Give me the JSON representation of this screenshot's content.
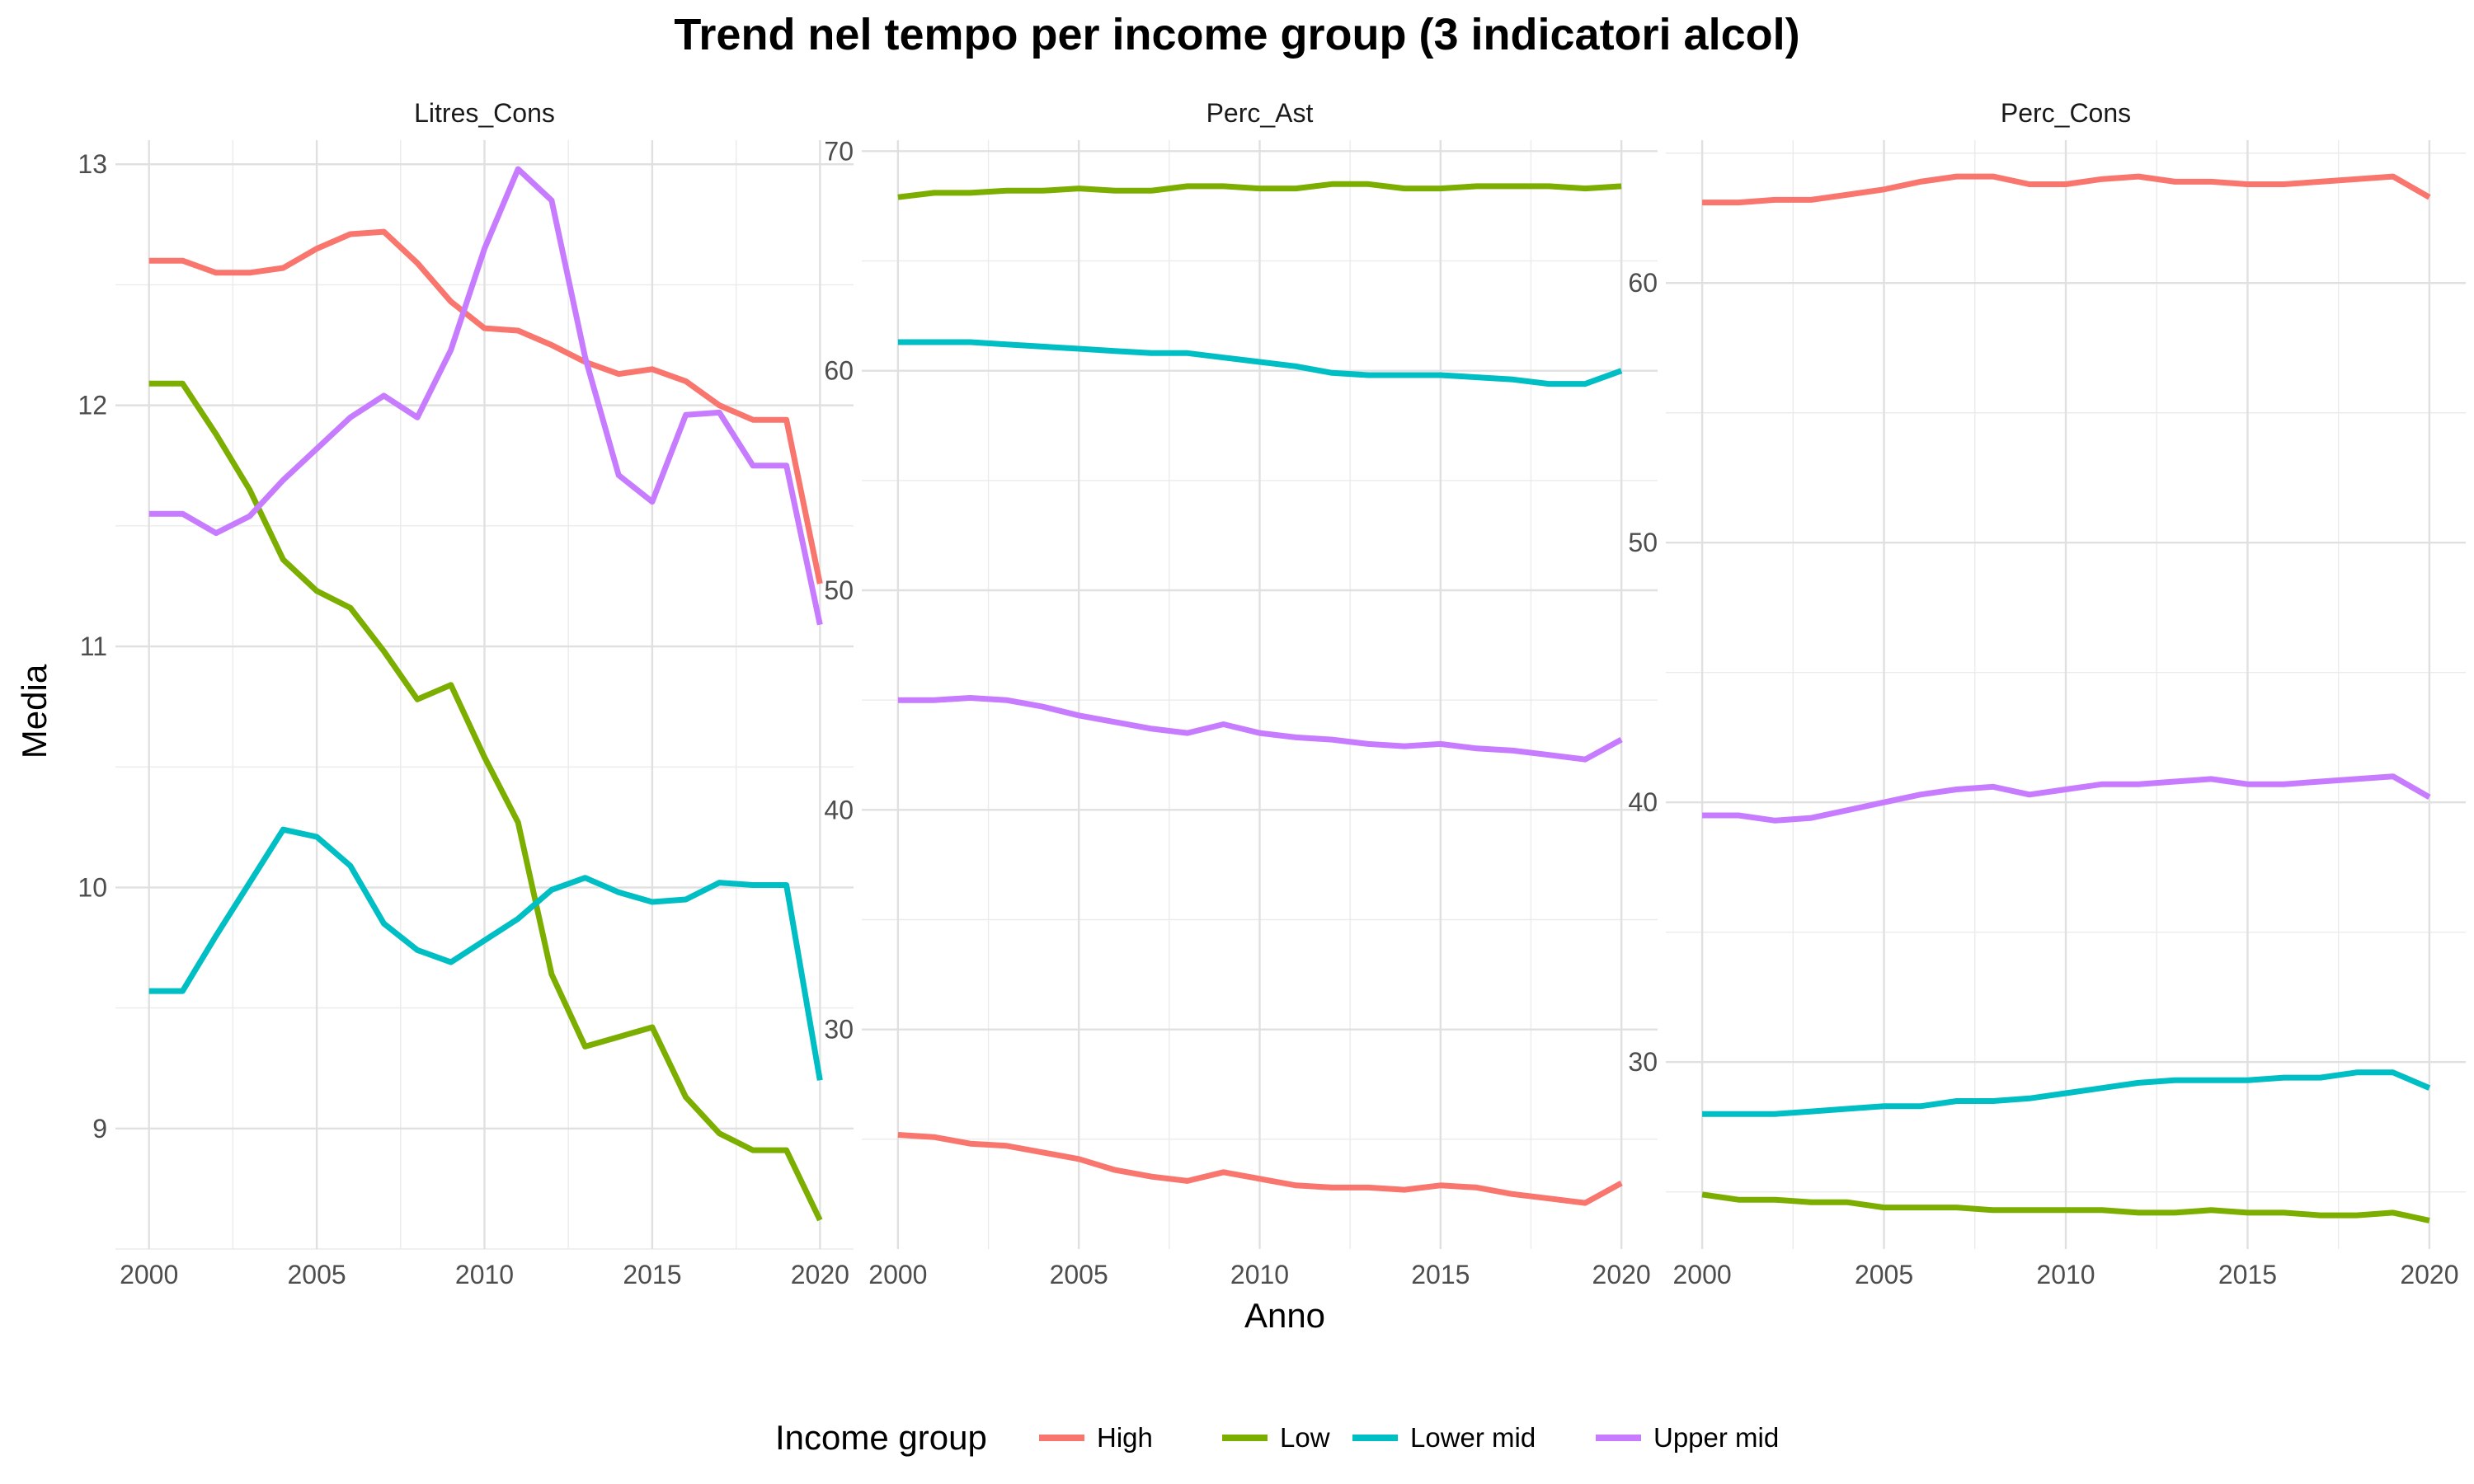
{
  "chart_data": {
    "type": "line",
    "title": "Trend nel tempo per income group (3 indicatori alcol)",
    "xlabel": "Anno",
    "ylabel": "Media",
    "x_ticks": [
      2000,
      2005,
      2010,
      2015,
      2020
    ],
    "x_range": [
      1999,
      2021
    ],
    "x": [
      2000,
      2001,
      2002,
      2003,
      2004,
      2005,
      2006,
      2007,
      2008,
      2009,
      2010,
      2011,
      2012,
      2013,
      2014,
      2015,
      2016,
      2017,
      2018,
      2019,
      2020
    ],
    "legend": {
      "title": "Income group",
      "position": "bottom"
    },
    "grid": true,
    "colors": {
      "High": "#F8766D",
      "Low": "#7CAE00",
      "Lower mid": "#00BFC4",
      "Upper mid": "#C77CFF"
    },
    "panels": [
      {
        "strip": "Litres_Cons",
        "ylim": [
          8.5,
          13.1
        ],
        "y_ticks": [
          9,
          10,
          11,
          12,
          13
        ],
        "series": [
          {
            "name": "High",
            "values": [
              12.6,
              12.6,
              12.55,
              12.55,
              12.57,
              12.65,
              12.71,
              12.72,
              12.59,
              12.43,
              12.32,
              12.31,
              12.25,
              12.18,
              12.13,
              12.15,
              12.1,
              12.0,
              11.94,
              11.94,
              11.26
            ]
          },
          {
            "name": "Low",
            "values": [
              12.09,
              12.09,
              11.88,
              11.65,
              11.36,
              11.23,
              11.16,
              10.98,
              10.78,
              10.84,
              10.54,
              10.27,
              9.64,
              9.34,
              9.38,
              9.42,
              9.13,
              8.98,
              8.91,
              8.91,
              8.62
            ]
          },
          {
            "name": "Lower mid",
            "values": [
              9.57,
              9.57,
              9.8,
              10.02,
              10.24,
              10.21,
              10.09,
              9.85,
              9.74,
              9.69,
              9.78,
              9.87,
              9.99,
              10.04,
              9.98,
              9.94,
              9.95,
              10.02,
              10.01,
              10.01,
              9.2
            ]
          },
          {
            "name": "Upper mid",
            "values": [
              11.55,
              11.55,
              11.47,
              11.54,
              11.69,
              11.82,
              11.95,
              12.04,
              11.95,
              12.23,
              12.65,
              12.98,
              12.85,
              12.2,
              11.71,
              11.6,
              11.96,
              11.97,
              11.75,
              11.75,
              11.09
            ]
          }
        ]
      },
      {
        "strip": "Perc_Ast",
        "ylim": [
          20.0,
          70.5
        ],
        "y_ticks": [
          30,
          40,
          50,
          60,
          70
        ],
        "series": [
          {
            "name": "High",
            "values": [
              25.2,
              25.1,
              24.8,
              24.7,
              24.4,
              24.1,
              23.6,
              23.3,
              23.1,
              23.5,
              23.2,
              22.9,
              22.8,
              22.8,
              22.7,
              22.9,
              22.8,
              22.5,
              22.3,
              22.1,
              23.0
            ]
          },
          {
            "name": "Low",
            "values": [
              67.9,
              68.1,
              68.1,
              68.2,
              68.2,
              68.3,
              68.2,
              68.2,
              68.4,
              68.4,
              68.3,
              68.3,
              68.5,
              68.5,
              68.3,
              68.3,
              68.4,
              68.4,
              68.4,
              68.3,
              68.4
            ]
          },
          {
            "name": "Lower mid",
            "values": [
              61.3,
              61.3,
              61.3,
              61.2,
              61.1,
              61.0,
              60.9,
              60.8,
              60.8,
              60.6,
              60.4,
              60.2,
              59.9,
              59.8,
              59.8,
              59.8,
              59.7,
              59.6,
              59.4,
              59.4,
              60.0
            ]
          },
          {
            "name": "Upper mid",
            "values": [
              45.0,
              45.0,
              45.1,
              45.0,
              44.7,
              44.3,
              44.0,
              43.7,
              43.5,
              43.9,
              43.5,
              43.3,
              43.2,
              43.0,
              42.9,
              43.0,
              42.8,
              42.7,
              42.5,
              42.3,
              43.2
            ]
          }
        ]
      },
      {
        "strip": "Perc_Cons",
        "ylim": [
          22.8,
          65.5
        ],
        "y_ticks": [
          30,
          40,
          50,
          60
        ],
        "series": [
          {
            "name": "High",
            "values": [
              63.1,
              63.1,
              63.2,
              63.2,
              63.4,
              63.6,
              63.9,
              64.1,
              64.1,
              63.8,
              63.8,
              64.0,
              64.1,
              63.9,
              63.9,
              63.8,
              63.8,
              63.9,
              64.0,
              64.1,
              63.3
            ]
          },
          {
            "name": "Low",
            "values": [
              24.9,
              24.7,
              24.7,
              24.6,
              24.6,
              24.4,
              24.4,
              24.4,
              24.3,
              24.3,
              24.3,
              24.3,
              24.2,
              24.2,
              24.3,
              24.2,
              24.2,
              24.1,
              24.1,
              24.2,
              23.9
            ]
          },
          {
            "name": "Lower mid",
            "values": [
              28.0,
              28.0,
              28.0,
              28.1,
              28.2,
              28.3,
              28.3,
              28.5,
              28.5,
              28.6,
              28.8,
              29.0,
              29.2,
              29.3,
              29.3,
              29.3,
              29.4,
              29.4,
              29.6,
              29.6,
              29.0
            ]
          },
          {
            "name": "Upper mid",
            "values": [
              39.5,
              39.5,
              39.3,
              39.4,
              39.7,
              40.0,
              40.3,
              40.5,
              40.6,
              40.3,
              40.5,
              40.7,
              40.7,
              40.8,
              40.9,
              40.7,
              40.7,
              40.8,
              40.9,
              41.0,
              40.2
            ]
          }
        ]
      }
    ]
  }
}
